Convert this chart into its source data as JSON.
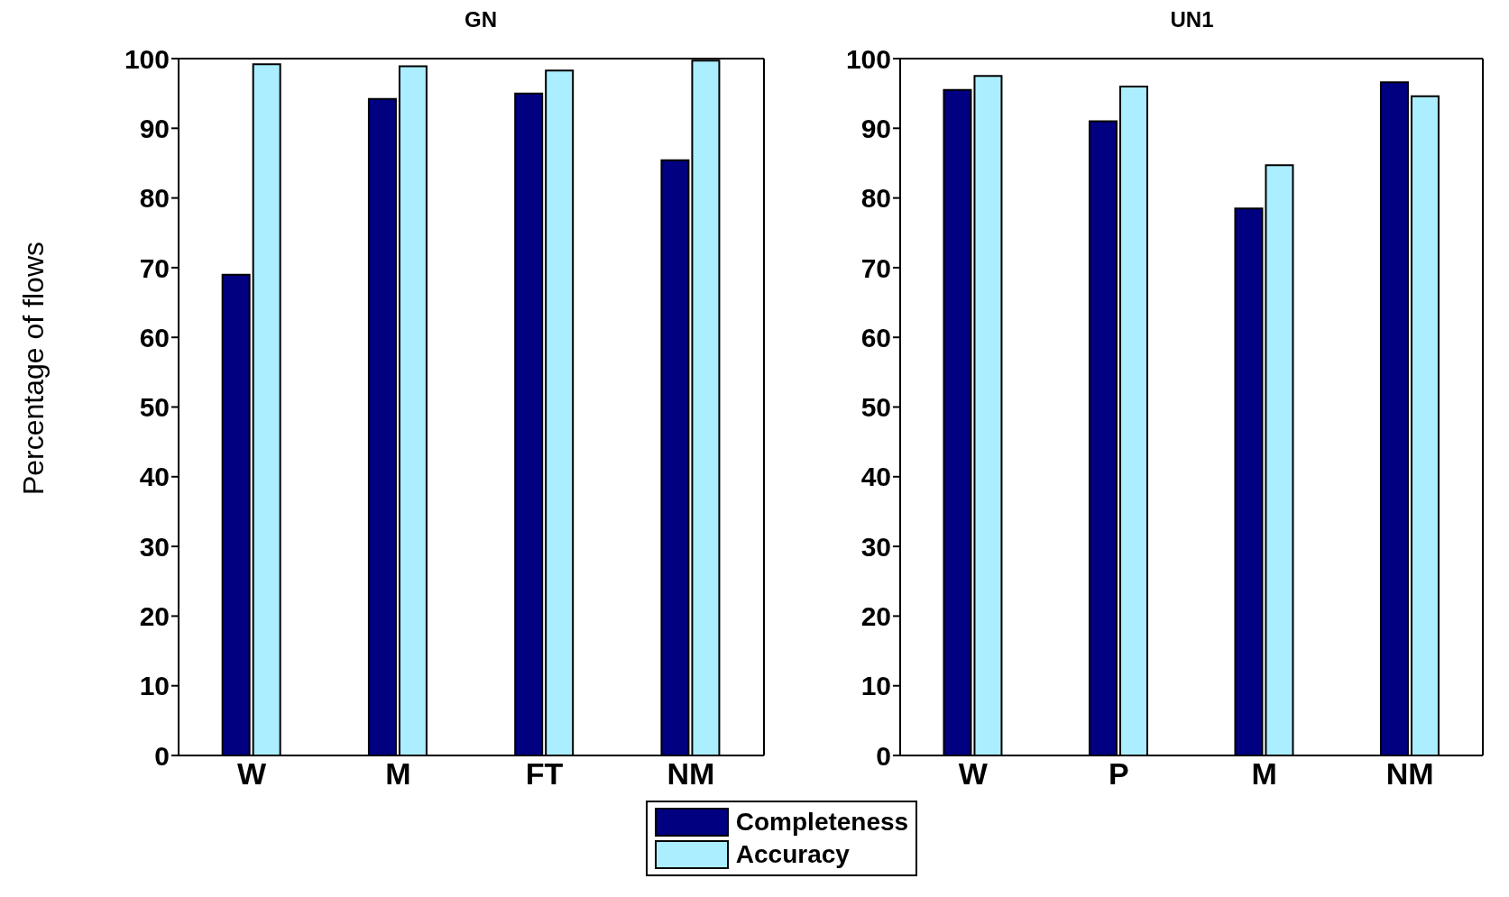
{
  "chart_data": [
    {
      "type": "bar",
      "title": "GN",
      "ylabel": "Percentage of flows",
      "categories": [
        "W",
        "M",
        "FT",
        "NM"
      ],
      "series": [
        {
          "name": "Completeness",
          "color": "#000080",
          "values": [
            69,
            94.2,
            95,
            85.4
          ]
        },
        {
          "name": "Accuracy",
          "color": "#aaeeff",
          "values": [
            99.2,
            98.9,
            98.3,
            99.7
          ]
        }
      ],
      "ylim": [
        0,
        100
      ],
      "yticks": [
        0,
        10,
        20,
        30,
        40,
        50,
        60,
        70,
        80,
        90,
        100
      ],
      "grid": false,
      "legend": "bottom"
    },
    {
      "type": "bar",
      "title": "UN1",
      "categories": [
        "W",
        "P",
        "M",
        "NM"
      ],
      "series": [
        {
          "name": "Completeness",
          "color": "#000080",
          "values": [
            95.5,
            91,
            78.5,
            96.6
          ]
        },
        {
          "name": "Accuracy",
          "color": "#aaeeff",
          "values": [
            97.5,
            96,
            84.7,
            94.6
          ]
        }
      ],
      "ylim": [
        0,
        100
      ],
      "yticks": [
        0,
        10,
        20,
        30,
        40,
        50,
        60,
        70,
        80,
        90,
        100
      ],
      "grid": false,
      "legend": "bottom"
    }
  ]
}
